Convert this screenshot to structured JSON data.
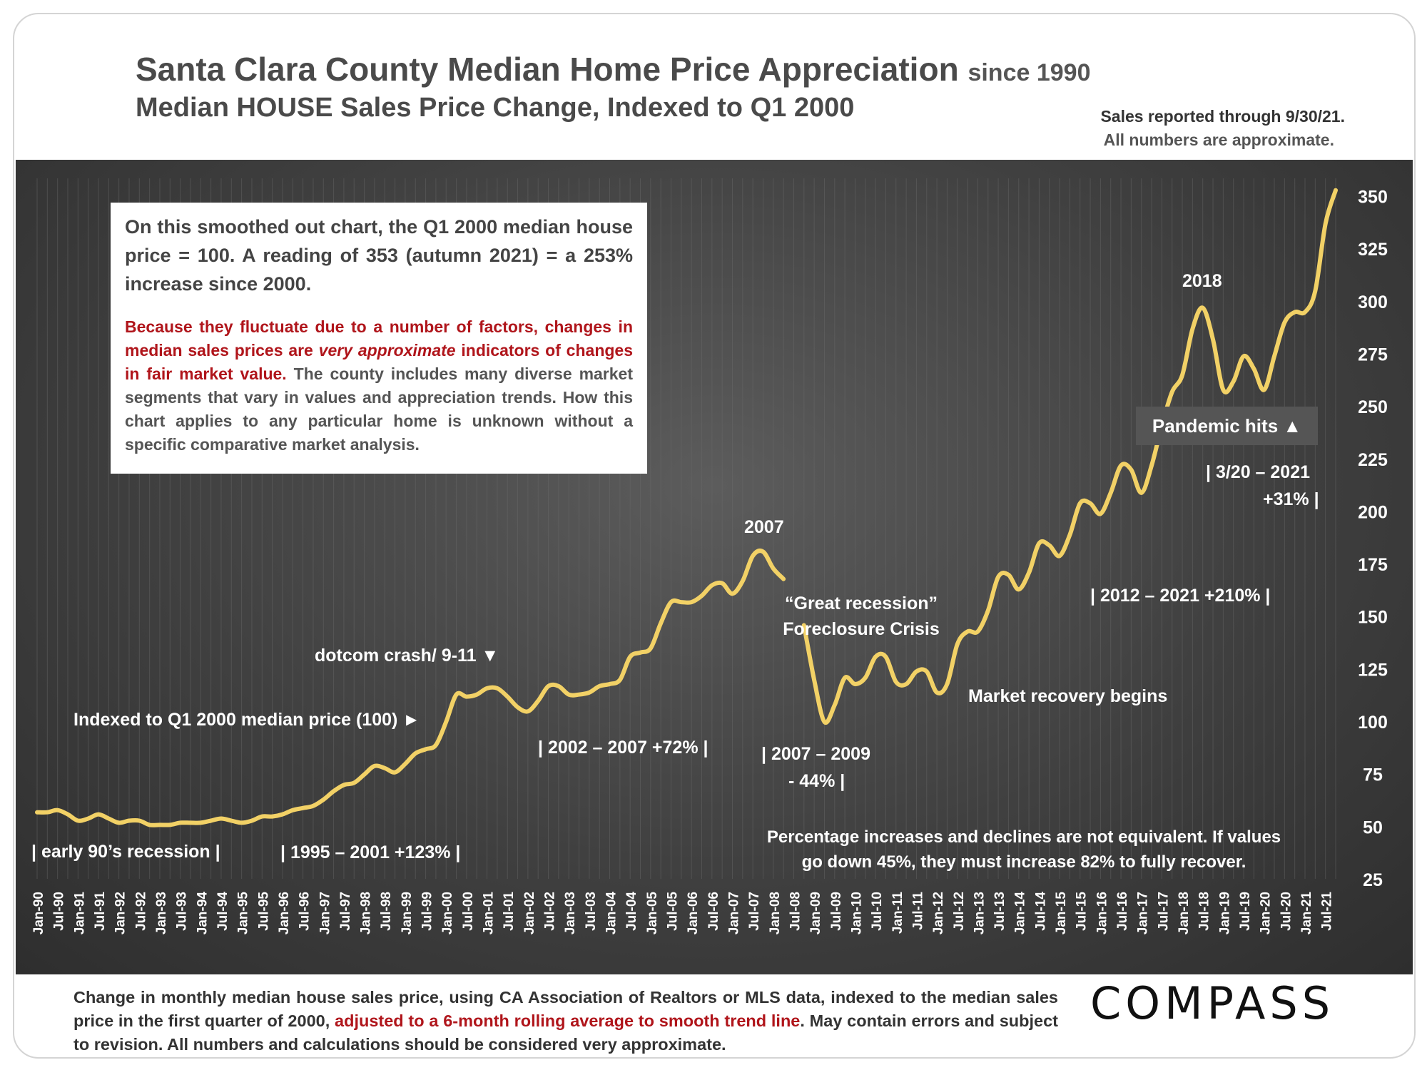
{
  "header": {
    "title": "Santa Clara County Median Home Price Appreciation",
    "title_suffix": "since 1990",
    "subtitle": "Median HOUSE Sales Price Change, Indexed to Q1 2000",
    "note_line1": "Sales reported through 9/30/21.",
    "note_line2": "All numbers are approximate."
  },
  "infobox": {
    "para1": "On this smoothed out chart, the Q1 2000 median house price = 100. A reading of 353 (autumn 2021) = a 253% increase since 2000.",
    "para2_red_a": "Because they fluctuate due to a number of factors, changes in median sales prices are ",
    "para2_red_em": "very approximate",
    "para2_red_b": " indicators of changes in fair market value.",
    "para2_rest": " The county includes many diverse market segments that vary in values and appreciation trends. How this chart applies to any particular home is unknown without a specific comparative market analysis."
  },
  "annotations": {
    "early90s": "| early 90’s recession |",
    "r1995": "| 1995 – 2001 +123% |",
    "indexed": "Indexed to Q1 2000 median price (100) ►",
    "dotcom": "dotcom crash/ 9-11 ▼",
    "r2002": "| 2002 – 2007 +72% |",
    "peak2007": "2007",
    "recession_l1": "“Great recession”",
    "recession_l2": "Foreclosure Crisis",
    "r2007_l1": "| 2007 – 2009",
    "r2007_l2": "- 44% |",
    "recovery": "Market recovery begins",
    "r2012": "| 2012 – 2021 +210% |",
    "peak2018": "2018",
    "pandemic": "Pandemic hits ▲",
    "r2020_l1": "| 3/20 – 2021",
    "r2020_l2": "+31% |",
    "pct_l1": "Percentage increases and declines are not equivalent. If values",
    "pct_l2": "go down 45%, they must increase 82% to fully recover."
  },
  "footer": {
    "text_a": "Change in monthly median house sales price, using CA Association of Realtors or MLS data, indexed to the median sales price in the first quarter of 2000, ",
    "text_red": "adjusted to a 6-month rolling average to smooth trend line",
    "text_b": ". May contain errors and subject to revision. All numbers and calculations should be considered very approximate.",
    "logo": "COMPASS"
  },
  "chart_data": {
    "type": "line",
    "title": "Santa Clara County Median Home Price Appreciation",
    "ylim": [
      25,
      355
    ],
    "yticks": [
      25,
      50,
      75,
      100,
      125,
      150,
      175,
      200,
      225,
      250,
      275,
      300,
      325,
      350
    ],
    "xlabels": [
      "Jan-90",
      "Jul-90",
      "Jan-91",
      "Jul-91",
      "Jan-92",
      "Jul-92",
      "Jan-93",
      "Jul-93",
      "Jan-94",
      "Jul-94",
      "Jan-95",
      "Jul-95",
      "Jan-96",
      "Jul-96",
      "Jan-97",
      "Jul-97",
      "Jan-98",
      "Jul-98",
      "Jan-99",
      "Jul-99",
      "Jan-00",
      "Jul-00",
      "Jan-01",
      "Jul-01",
      "Jan-02",
      "Jul-02",
      "Jan-03",
      "Jul-03",
      "Jan-04",
      "Jul-04",
      "Jan-05",
      "Jul-05",
      "Jan-06",
      "Jul-06",
      "Jan-07",
      "Jul-07",
      "Jan-08",
      "Jul-08",
      "Jan-09",
      "Jul-09",
      "Jan-10",
      "Jul-10",
      "Jan-11",
      "Jul-11",
      "Jan-12",
      "Jul-12",
      "Jan-13",
      "Jul-13",
      "Jan-14",
      "Jul-14",
      "Jan-15",
      "Jul-15",
      "Jan-16",
      "Jul-16",
      "Jan-17",
      "Jul-17",
      "Jan-18",
      "Jul-18",
      "Jan-19",
      "Jul-19",
      "Jan-20",
      "Jul-20",
      "Jan-21",
      "Jul-21"
    ],
    "grid": true,
    "legend": "none",
    "series_color": "#f2d166",
    "series": [
      {
        "segments": [
          [
            [
              1990.0,
              57
            ],
            [
              1990.25,
              57
            ],
            [
              1990.5,
              58
            ],
            [
              1990.75,
              56
            ],
            [
              1991.0,
              53
            ],
            [
              1991.25,
              54
            ],
            [
              1991.5,
              56
            ],
            [
              1991.75,
              54
            ],
            [
              1992.0,
              52
            ],
            [
              1992.25,
              53
            ],
            [
              1992.5,
              53
            ],
            [
              1992.75,
              51
            ],
            [
              1993.0,
              51
            ],
            [
              1993.25,
              51
            ],
            [
              1993.5,
              52
            ],
            [
              1993.75,
              52
            ],
            [
              1994.0,
              52
            ],
            [
              1994.25,
              53
            ],
            [
              1994.5,
              54
            ],
            [
              1994.75,
              53
            ],
            [
              1995.0,
              52
            ],
            [
              1995.25,
              53
            ],
            [
              1995.5,
              55
            ],
            [
              1995.75,
              55
            ],
            [
              1996.0,
              56
            ],
            [
              1996.25,
              58
            ],
            [
              1996.5,
              59
            ],
            [
              1996.75,
              60
            ],
            [
              1997.0,
              63
            ],
            [
              1997.25,
              67
            ],
            [
              1997.5,
              70
            ],
            [
              1997.75,
              71
            ],
            [
              1998.0,
              75
            ],
            [
              1998.25,
              79
            ],
            [
              1998.5,
              78
            ],
            [
              1998.75,
              76
            ],
            [
              1999.0,
              80
            ],
            [
              1999.25,
              85
            ],
            [
              1999.5,
              87
            ],
            [
              1999.75,
              89
            ],
            [
              2000.0,
              100
            ],
            [
              2000.25,
              113
            ],
            [
              2000.5,
              112
            ],
            [
              2000.75,
              113
            ],
            [
              2001.0,
              116
            ],
            [
              2001.25,
              116
            ],
            [
              2001.5,
              112
            ],
            [
              2001.75,
              107
            ],
            [
              2002.0,
              105
            ],
            [
              2002.25,
              110
            ],
            [
              2002.5,
              117
            ],
            [
              2002.75,
              117
            ],
            [
              2003.0,
              113
            ],
            [
              2003.25,
              113
            ],
            [
              2003.5,
              114
            ],
            [
              2003.75,
              117
            ],
            [
              2004.0,
              118
            ],
            [
              2004.25,
              120
            ],
            [
              2004.5,
              131
            ],
            [
              2004.75,
              133
            ],
            [
              2005.0,
              135
            ],
            [
              2005.25,
              147
            ],
            [
              2005.5,
              157
            ],
            [
              2005.75,
              157
            ],
            [
              2006.0,
              157
            ],
            [
              2006.25,
              160
            ],
            [
              2006.5,
              165
            ],
            [
              2006.75,
              166
            ],
            [
              2007.0,
              161
            ],
            [
              2007.25,
              167
            ],
            [
              2007.5,
              179
            ],
            [
              2007.75,
              181
            ],
            [
              2008.0,
              173
            ],
            [
              2008.25,
              168
            ]
          ],
          [
            [
              2008.75,
              146
            ],
            [
              2009.0,
              120
            ],
            [
              2009.25,
              100
            ],
            [
              2009.5,
              108
            ],
            [
              2009.75,
              121
            ],
            [
              2010.0,
              118
            ],
            [
              2010.25,
              121
            ],
            [
              2010.5,
              131
            ],
            [
              2010.75,
              131
            ],
            [
              2011.0,
              119
            ],
            [
              2011.25,
              118
            ],
            [
              2011.5,
              124
            ],
            [
              2011.75,
              124
            ],
            [
              2012.0,
              114
            ],
            [
              2012.25,
              118
            ],
            [
              2012.5,
              137
            ],
            [
              2012.75,
              143
            ],
            [
              2013.0,
              143
            ],
            [
              2013.25,
              153
            ],
            [
              2013.5,
              169
            ],
            [
              2013.75,
              170
            ],
            [
              2014.0,
              163
            ],
            [
              2014.25,
              171
            ],
            [
              2014.5,
              185
            ],
            [
              2014.75,
              184
            ],
            [
              2015.0,
              179
            ],
            [
              2015.25,
              189
            ],
            [
              2015.5,
              204
            ],
            [
              2015.75,
              204
            ],
            [
              2016.0,
              199
            ],
            [
              2016.25,
              209
            ],
            [
              2016.5,
              222
            ],
            [
              2016.75,
              220
            ],
            [
              2017.0,
              209
            ],
            [
              2017.25,
              222
            ],
            [
              2017.5,
              241
            ],
            [
              2017.75,
              257
            ],
            [
              2018.0,
              265
            ],
            [
              2018.25,
              287
            ],
            [
              2018.5,
              297
            ],
            [
              2018.75,
              282
            ],
            [
              2019.0,
              258
            ],
            [
              2019.25,
              262
            ],
            [
              2019.5,
              274
            ],
            [
              2019.75,
              268
            ],
            [
              2020.0,
              258
            ],
            [
              2020.25,
              274
            ],
            [
              2020.5,
              290
            ],
            [
              2020.75,
              295
            ],
            [
              2021.0,
              295
            ],
            [
              2021.25,
              305
            ],
            [
              2021.5,
              337
            ],
            [
              2021.75,
              353
            ]
          ]
        ]
      }
    ]
  }
}
